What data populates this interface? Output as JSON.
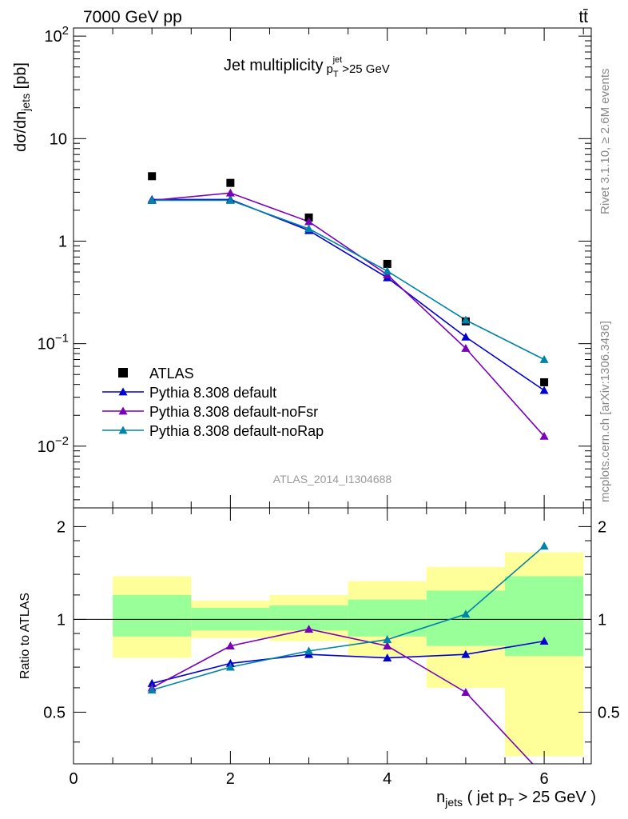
{
  "header": {
    "left": "7000 GeV pp",
    "right": "tt̄"
  },
  "side_labels": {
    "upper": "Rivet 3.1.10, ≥ 2.6M events",
    "lower": "mcplots.cern.ch [arXiv:1306.3436]"
  },
  "colors": {
    "atlas": "#000000",
    "default": "#0000cc",
    "noFsr": "#7a00b8",
    "noRap": "#0083a8",
    "band_inner": "#99ff99",
    "band_outer": "#ffff99",
    "watermark": "#999999"
  },
  "chart_data": [
    {
      "type": "scatter",
      "title": "Jet multiplicity",
      "title_suffix": {
        "p": "p",
        "sub": "T",
        "sup": "jet",
        "cut": ">25 GeV"
      },
      "ylabel": "dσ/dn",
      "ylabel_sub": "jets",
      "ylabel_unit": " [pb]",
      "yscale": "log",
      "ylim": [
        0.0025,
        120
      ],
      "xlim": [
        0,
        6.6
      ],
      "yticks": [
        {
          "value": 0.01,
          "base": "10",
          "exp": "−2"
        },
        {
          "value": 0.1,
          "base": "10",
          "exp": "−1"
        },
        {
          "value": 1,
          "base": "1",
          "exp": ""
        },
        {
          "value": 10,
          "base": "10",
          "exp": ""
        },
        {
          "value": 100,
          "base": "10",
          "exp": "2"
        }
      ],
      "watermark": "ATLAS_2014_I1304688",
      "legend_placement": "bottom-left",
      "series": [
        {
          "name": "ATLAS",
          "key": "atlas",
          "marker": "square",
          "line": false,
          "x": [
            1,
            2,
            3,
            4,
            5,
            6
          ],
          "y": [
            4.3,
            3.7,
            1.7,
            0.6,
            0.165,
            0.042
          ]
        },
        {
          "name": "Pythia 8.308 default",
          "key": "default",
          "marker": "triangle",
          "line": true,
          "x": [
            1,
            2,
            3,
            4,
            5,
            6
          ],
          "y": [
            2.55,
            2.55,
            1.27,
            0.44,
            0.116,
            0.035
          ]
        },
        {
          "name": "Pythia 8.308 default-noFsr",
          "key": "noFsr",
          "marker": "triangle",
          "line": true,
          "x": [
            1,
            2,
            3,
            4,
            5,
            6
          ],
          "y": [
            2.5,
            2.95,
            1.55,
            0.47,
            0.09,
            0.0125
          ]
        },
        {
          "name": "Pythia 8.308 default-noRap",
          "key": "noRap",
          "marker": "triangle",
          "line": true,
          "x": [
            1,
            2,
            3,
            4,
            5,
            6
          ],
          "y": [
            2.5,
            2.5,
            1.32,
            0.51,
            0.17,
            0.07
          ]
        }
      ]
    },
    {
      "type": "line",
      "ylabel": "Ratio to ATLAS",
      "xlabel_parts": {
        "n": "n",
        "n_sub": "jets",
        "mid": " ( jet p",
        "p_sub": "T",
        "tail": " > 25 GeV )"
      },
      "xlim": [
        0,
        6.6
      ],
      "ylim": [
        0.34,
        2.3
      ],
      "yticks": [
        0.5,
        1,
        2
      ],
      "xticks": [
        0,
        2,
        4,
        6
      ],
      "reference_line": 1,
      "bins": [
        {
          "lo": 0.5,
          "hi": 1.5,
          "inner": [
            0.88,
            1.2
          ],
          "outer": [
            0.75,
            1.38
          ]
        },
        {
          "lo": 1.5,
          "hi": 2.5,
          "inner": [
            0.92,
            1.09
          ],
          "outer": [
            0.87,
            1.15
          ]
        },
        {
          "lo": 2.5,
          "hi": 3.5,
          "inner": [
            0.92,
            1.11
          ],
          "outer": [
            0.85,
            1.2
          ]
        },
        {
          "lo": 3.5,
          "hi": 4.5,
          "inner": [
            0.88,
            1.16
          ],
          "outer": [
            0.76,
            1.33
          ]
        },
        {
          "lo": 4.5,
          "hi": 5.5,
          "inner": [
            0.82,
            1.24
          ],
          "outer": [
            0.6,
            1.48
          ]
        },
        {
          "lo": 5.5,
          "hi": 6.5,
          "inner": [
            0.76,
            1.38
          ],
          "outer": [
            0.36,
            1.65
          ]
        }
      ],
      "series": [
        {
          "name": "Pythia 8.308 default",
          "key": "default",
          "x": [
            1,
            2,
            3,
            4,
            5,
            6
          ],
          "y": [
            0.62,
            0.72,
            0.77,
            0.75,
            0.77,
            0.85
          ]
        },
        {
          "name": "Pythia 8.308 default-noFsr",
          "key": "noFsr",
          "x": [
            1,
            2,
            3,
            4,
            5,
            6
          ],
          "y": [
            0.6,
            0.82,
            0.93,
            0.82,
            0.58,
            0.31
          ]
        },
        {
          "name": "Pythia 8.308 default-noRap",
          "key": "noRap",
          "x": [
            1,
            2,
            3,
            4,
            5,
            6
          ],
          "y": [
            0.59,
            0.7,
            0.79,
            0.86,
            1.04,
            1.73
          ]
        }
      ]
    }
  ]
}
